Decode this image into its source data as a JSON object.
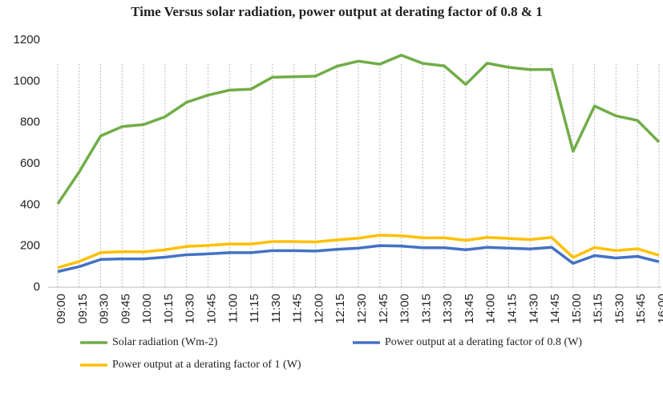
{
  "chart_data": {
    "type": "line",
    "title": "Time Versus solar radiation, power output at derating factor of 0.8 & 1",
    "categories": [
      "09:00",
      "09:15",
      "09:30",
      "09:45",
      "10:00",
      "10:15",
      "10:30",
      "10:45",
      "11:00",
      "11:15",
      "11:30",
      "11:45",
      "12:00",
      "12:15",
      "12:30",
      "12:45",
      "13:00",
      "13:15",
      "13:30",
      "13:45",
      "14:00",
      "14:15",
      "14:30",
      "14:45",
      "15:00",
      "15:15",
      "15:30",
      "15:45",
      "16:00"
    ],
    "series": [
      {
        "name": "Solar radiation (Wm-2)",
        "color": "#70ad47",
        "values": [
          405,
          560,
          735,
          780,
          790,
          828,
          898,
          933,
          957,
          962,
          1020,
          1022,
          1025,
          1073,
          1098,
          1083,
          1127,
          1087,
          1075,
          985,
          1088,
          1068,
          1057,
          1058,
          660,
          880,
          832,
          810,
          705
        ]
      },
      {
        "name": "Power output at a derating factor of 0.8 (W)",
        "color": "#4472c4",
        "values": [
          76,
          100,
          135,
          138,
          138,
          146,
          158,
          162,
          168,
          168,
          178,
          178,
          176,
          184,
          190,
          202,
          200,
          192,
          192,
          182,
          194,
          190,
          186,
          194,
          116,
          154,
          142,
          150,
          124
        ]
      },
      {
        "name": "Power output at a derating factor of 1 (W)",
        "color": "#ffc000",
        "values": [
          95,
          125,
          168,
          173,
          172,
          182,
          198,
          203,
          210,
          210,
          222,
          222,
          220,
          230,
          238,
          253,
          250,
          240,
          240,
          228,
          242,
          237,
          232,
          242,
          145,
          193,
          178,
          187,
          155
        ]
      }
    ],
    "ylim": [
      0,
      1200
    ],
    "yticks": [
      0,
      200,
      400,
      600,
      800,
      1000,
      1200
    ],
    "grid": "vertical-dashed"
  }
}
